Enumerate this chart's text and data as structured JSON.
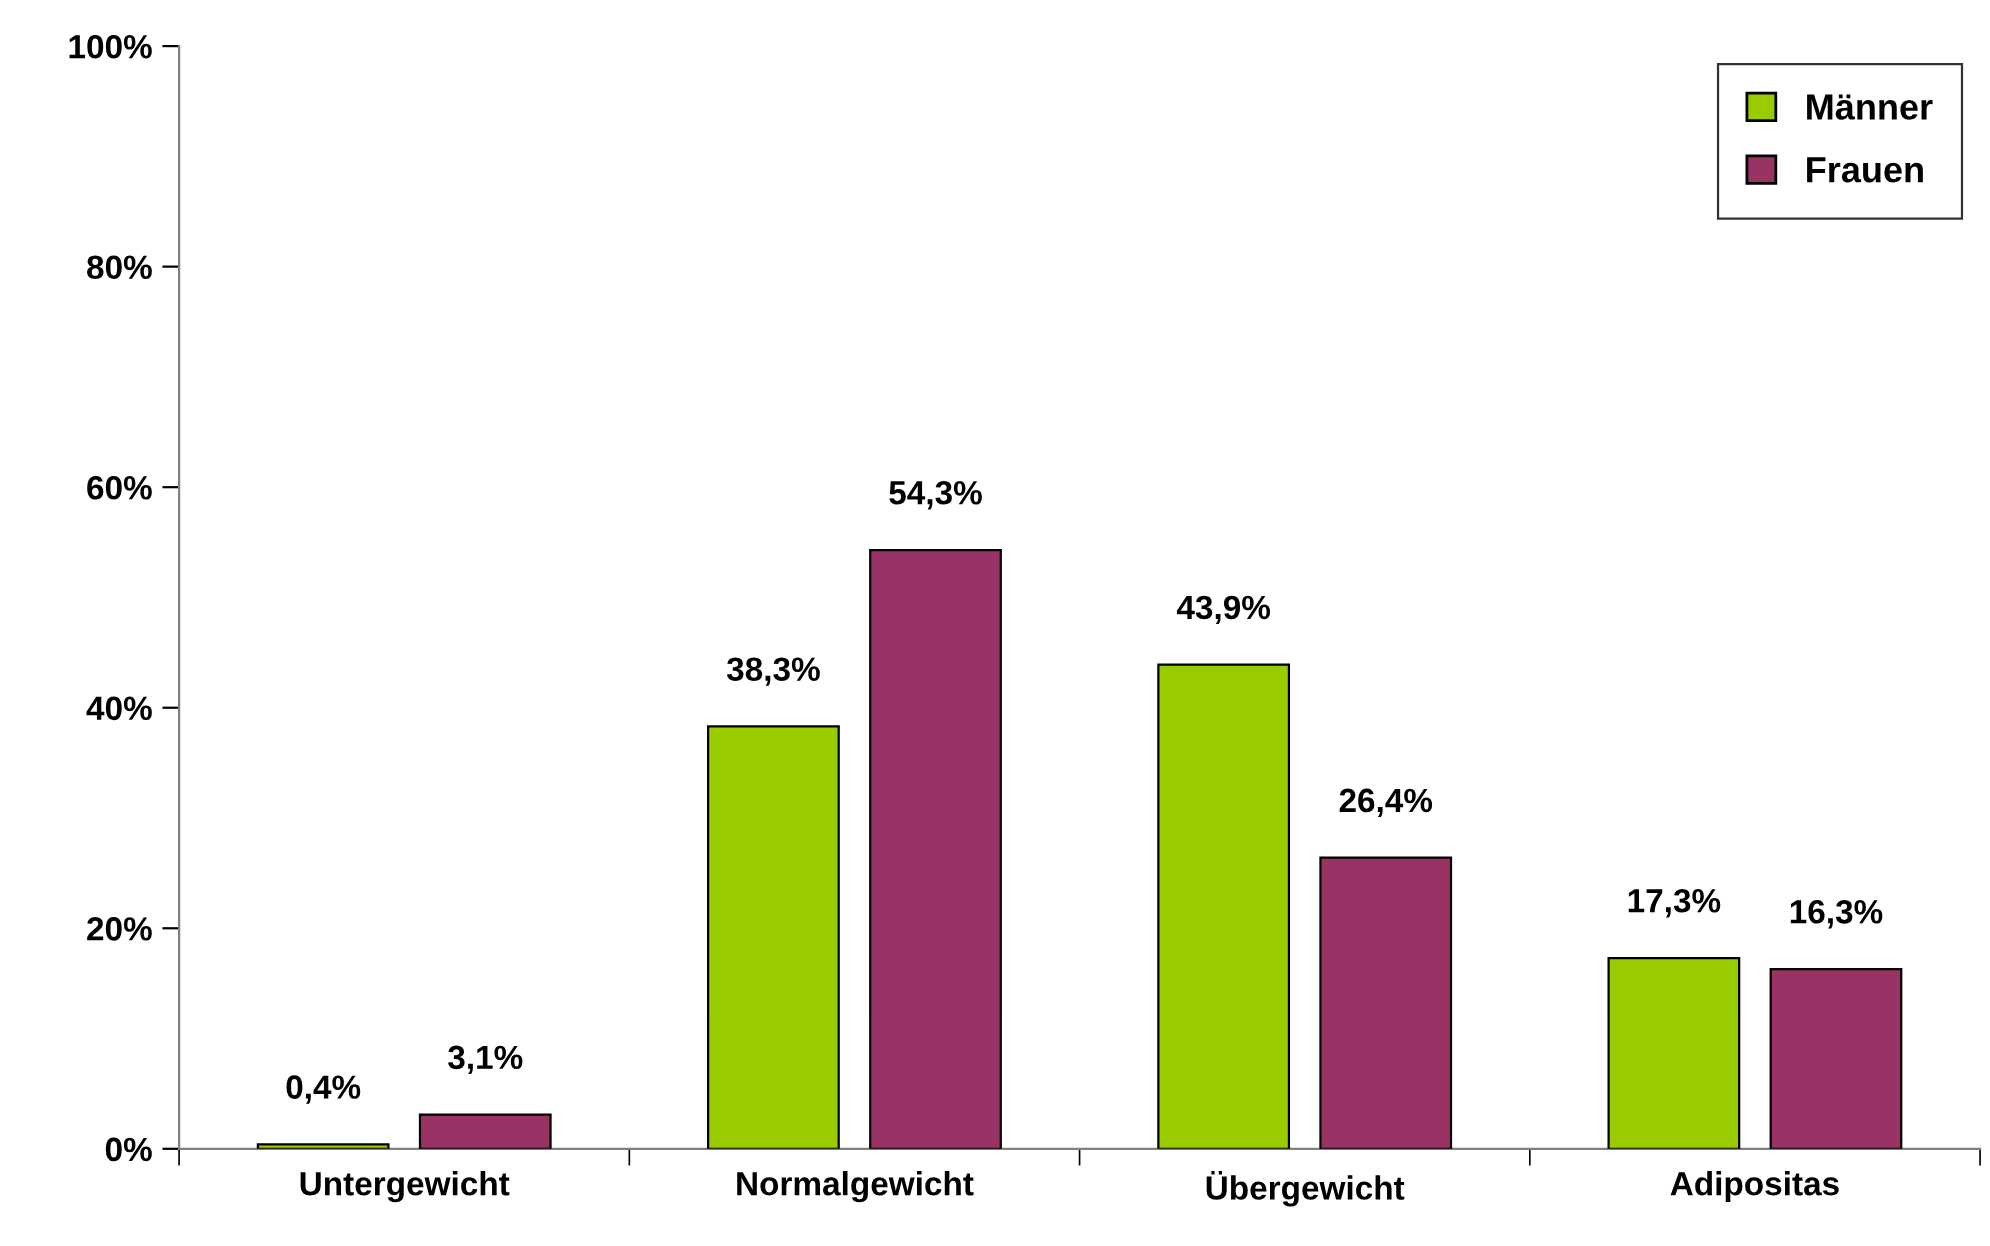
{
  "chart_data": {
    "type": "bar",
    "categories": [
      "Untergewicht",
      "Normalgewicht",
      "Übergewicht",
      "Adipositas"
    ],
    "series": [
      {
        "name": "Männer",
        "color": "#99cc00",
        "values": [
          0.4,
          38.3,
          43.9,
          17.3
        ],
        "value_labels": [
          "0,4%",
          "38,3%",
          "43,9%",
          "17,3%"
        ]
      },
      {
        "name": "Frauen",
        "color": "#993366",
        "values": [
          3.1,
          54.3,
          26.4,
          16.3
        ],
        "value_labels": [
          "3,1%",
          "54,3%",
          "26,4%",
          "16,3%"
        ]
      }
    ],
    "ylim": [
      0,
      100
    ],
    "yticks": [
      {
        "value": 0,
        "label": "0%"
      },
      {
        "value": 20,
        "label": "20%"
      },
      {
        "value": 40,
        "label": "40%"
      },
      {
        "value": 60,
        "label": "60%"
      },
      {
        "value": 80,
        "label": "80%"
      },
      {
        "value": 100,
        "label": "100%"
      }
    ],
    "grid": false,
    "legend": "top right"
  }
}
